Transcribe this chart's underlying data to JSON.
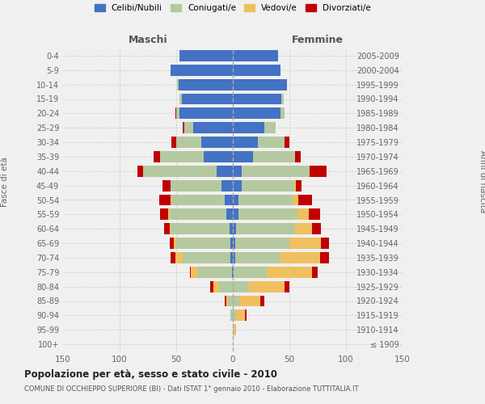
{
  "age_groups": [
    "100+",
    "95-99",
    "90-94",
    "85-89",
    "80-84",
    "75-79",
    "70-74",
    "65-69",
    "60-64",
    "55-59",
    "50-54",
    "45-49",
    "40-44",
    "35-39",
    "30-34",
    "25-29",
    "20-24",
    "15-19",
    "10-14",
    "5-9",
    "0-4"
  ],
  "birth_years": [
    "≤ 1909",
    "1910-1914",
    "1915-1919",
    "1920-1924",
    "1925-1929",
    "1930-1934",
    "1935-1939",
    "1940-1944",
    "1945-1949",
    "1950-1954",
    "1955-1959",
    "1960-1964",
    "1965-1969",
    "1970-1974",
    "1975-1979",
    "1980-1984",
    "1985-1989",
    "1990-1994",
    "1995-1999",
    "2000-2004",
    "2005-2009"
  ],
  "maschi": {
    "celibi": [
      0,
      0,
      0,
      0,
      0,
      1,
      2,
      2,
      3,
      6,
      7,
      10,
      14,
      26,
      28,
      35,
      47,
      45,
      48,
      55,
      47
    ],
    "coniugati": [
      0,
      0,
      2,
      4,
      12,
      30,
      42,
      48,
      52,
      50,
      47,
      45,
      65,
      38,
      22,
      8,
      3,
      2,
      1,
      0,
      0
    ],
    "vedovi": [
      0,
      0,
      0,
      2,
      5,
      6,
      7,
      2,
      1,
      1,
      1,
      0,
      0,
      0,
      0,
      0,
      0,
      0,
      0,
      0,
      0
    ],
    "divorziati": [
      0,
      0,
      0,
      1,
      3,
      1,
      4,
      4,
      5,
      7,
      10,
      7,
      5,
      6,
      4,
      1,
      1,
      0,
      0,
      0,
      0
    ]
  },
  "femmine": {
    "nubili": [
      0,
      0,
      0,
      0,
      0,
      1,
      2,
      2,
      3,
      5,
      5,
      8,
      8,
      18,
      22,
      28,
      42,
      43,
      48,
      42,
      40
    ],
    "coniugate": [
      0,
      1,
      3,
      6,
      14,
      29,
      40,
      48,
      52,
      52,
      48,
      46,
      60,
      37,
      24,
      10,
      4,
      2,
      0,
      0,
      0
    ],
    "vedove": [
      0,
      2,
      8,
      18,
      32,
      40,
      35,
      28,
      15,
      10,
      5,
      2,
      0,
      0,
      0,
      0,
      0,
      0,
      0,
      0,
      0
    ],
    "divorziate": [
      0,
      0,
      1,
      4,
      4,
      5,
      8,
      7,
      8,
      10,
      12,
      5,
      15,
      5,
      4,
      0,
      0,
      0,
      0,
      0,
      0
    ]
  },
  "colors": {
    "celibi": "#4472c4",
    "coniugati": "#b5c9a0",
    "vedovi": "#f0c060",
    "divorziati": "#c00000"
  },
  "xlim": 150,
  "title": "Popolazione per età, sesso e stato civile - 2010",
  "subtitle": "COMUNE DI OCCHIEPPO SUPERIORE (BI) - Dati ISTAT 1° gennaio 2010 - Elaborazione TUTTITALIA.IT",
  "ylabel_left": "Fasce di età",
  "ylabel_right": "Anni di nascita",
  "xlabel_maschi": "Maschi",
  "xlabel_femmine": "Femmine",
  "bg_color": "#f0f0f0",
  "legend_labels": [
    "Celibi/Nubili",
    "Coniugati/e",
    "Vedovi/e",
    "Divorziati/e"
  ]
}
